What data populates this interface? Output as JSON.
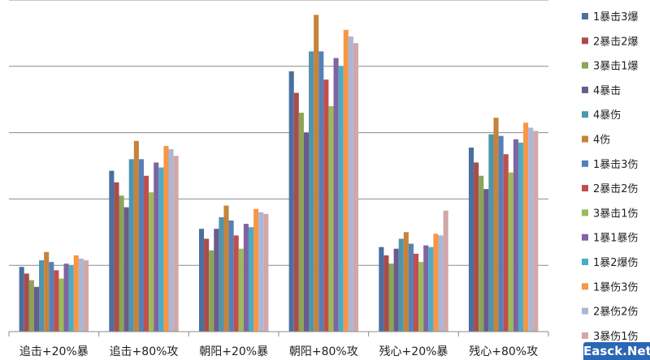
{
  "chart_data": {
    "type": "bar",
    "title": "",
    "xlabel": "",
    "ylabel": "",
    "ylim": [
      0,
      100
    ],
    "grid": true,
    "legend_position": "right",
    "categories": [
      "追击+20%暴",
      "追击+80%攻",
      "朝阳+20%暴",
      "朝阳+80%攻",
      "残心+20%暴",
      "残心+80%攻"
    ],
    "series": [
      {
        "name": "1暴击3爆",
        "color": "#4a6fa0",
        "values": [
          19.5,
          48.5,
          31.0,
          78.5,
          25.5,
          55.5
        ]
      },
      {
        "name": "2暴击2爆",
        "color": "#a94d4b",
        "values": [
          17.5,
          45.0,
          28.0,
          72.0,
          23.0,
          51.0
        ]
      },
      {
        "name": "3暴击1爆",
        "color": "#8ba556",
        "values": [
          15.5,
          41.0,
          24.5,
          66.0,
          20.5,
          47.0
        ]
      },
      {
        "name": "4暴击",
        "color": "#6b5b8c",
        "values": [
          13.5,
          37.5,
          31.0,
          60.0,
          25.0,
          43.0
        ]
      },
      {
        "name": "4暴伤",
        "color": "#4d96ad",
        "values": [
          21.5,
          52.0,
          34.5,
          84.5,
          28.0,
          59.5
        ]
      },
      {
        "name": "4伤",
        "color": "#c5833b",
        "values": [
          24.0,
          57.5,
          38.0,
          95.5,
          30.0,
          64.5
        ]
      },
      {
        "name": "1暴击3伤",
        "color": "#5680b9",
        "values": [
          21.0,
          52.0,
          33.5,
          84.5,
          26.5,
          59.0
        ]
      },
      {
        "name": "2暴击2伤",
        "color": "#c0504d",
        "values": [
          18.5,
          47.0,
          29.0,
          76.0,
          23.5,
          53.5
        ]
      },
      {
        "name": "3暴击1伤",
        "color": "#9bbb59",
        "values": [
          16.0,
          42.0,
          25.0,
          68.0,
          21.0,
          48.0
        ]
      },
      {
        "name": "1暴1暴伤",
        "color": "#8064a2",
        "values": [
          20.5,
          51.0,
          32.5,
          82.5,
          26.0,
          58.0
        ]
      },
      {
        "name": "1暴2爆伤",
        "color": "#4bacc6",
        "values": [
          20.0,
          49.5,
          31.5,
          80.0,
          25.5,
          57.0
        ]
      },
      {
        "name": "1暴伤3伤",
        "color": "#f79646",
        "values": [
          23.0,
          56.0,
          37.0,
          91.0,
          29.5,
          63.0
        ]
      },
      {
        "name": "2暴伤2伤",
        "color": "#aab7d8",
        "values": [
          22.0,
          55.0,
          36.0,
          89.0,
          29.0,
          61.5
        ]
      },
      {
        "name": "3暴伤1伤",
        "color": "#d1a7a8",
        "values": [
          21.5,
          53.0,
          35.5,
          87.0,
          36.5,
          60.5
        ]
      }
    ]
  },
  "watermark": {
    "text": "Easck.Net"
  }
}
